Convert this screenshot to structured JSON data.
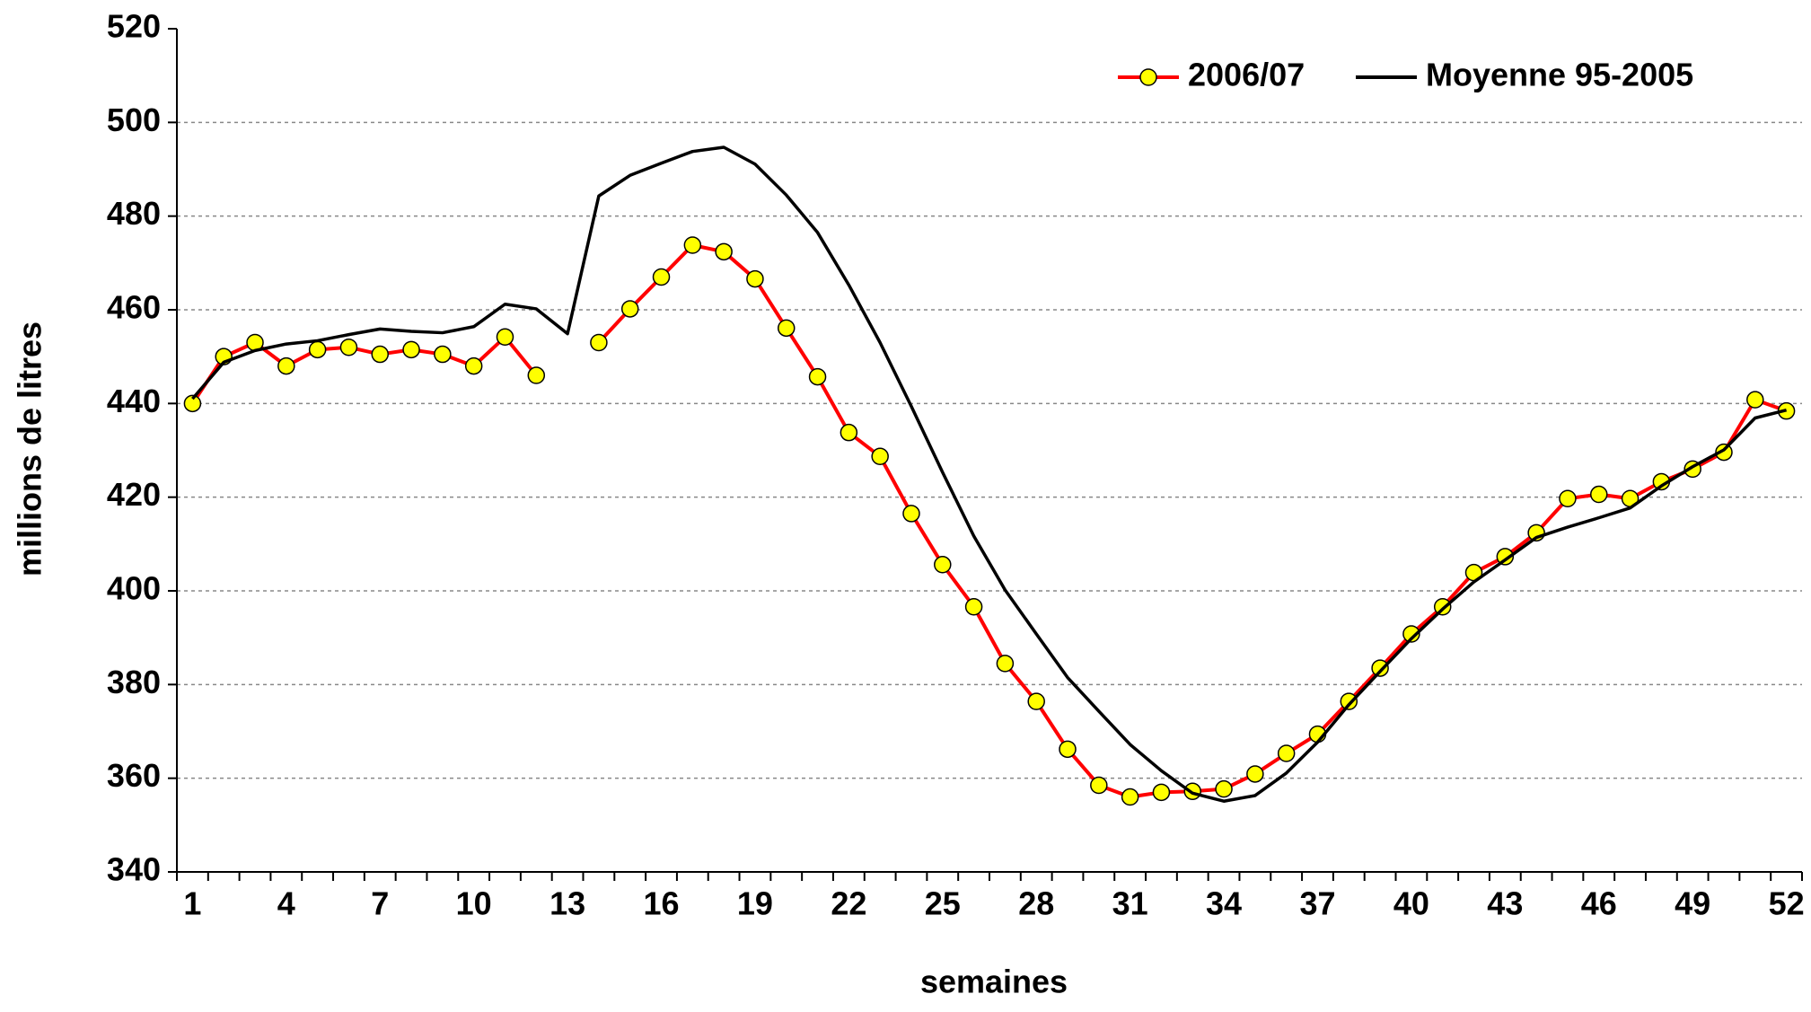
{
  "chart_data": {
    "type": "line",
    "xlabel": "semaines",
    "ylabel": "millions de litres",
    "x": [
      1,
      2,
      3,
      4,
      5,
      6,
      7,
      8,
      9,
      10,
      11,
      12,
      13,
      14,
      15,
      16,
      17,
      18,
      19,
      20,
      21,
      22,
      23,
      24,
      25,
      26,
      27,
      28,
      29,
      30,
      31,
      32,
      33,
      34,
      35,
      36,
      37,
      38,
      39,
      40,
      41,
      42,
      43,
      44,
      45,
      46,
      47,
      48,
      49,
      50,
      51,
      52
    ],
    "xlim": [
      0.5,
      52.5
    ],
    "xticks": [
      1,
      4,
      7,
      10,
      13,
      16,
      19,
      22,
      25,
      28,
      31,
      34,
      37,
      40,
      43,
      46,
      49,
      52
    ],
    "ylim": [
      340,
      520
    ],
    "yticks": [
      340,
      360,
      380,
      400,
      420,
      440,
      460,
      480,
      500,
      520
    ],
    "grid": true,
    "legend": "top-right",
    "series": [
      {
        "name": "2006/07",
        "color": "#ff0000",
        "marker_color": "#ffff00",
        "marker": true,
        "values": [
          440,
          450,
          453,
          448,
          451.5,
          452,
          450.5,
          451.5,
          450.5,
          448,
          454.2,
          446,
          null,
          453,
          460.2,
          467,
          473.8,
          472.4,
          466.6,
          456.1,
          445.7,
          433.8,
          428.7,
          416.5,
          405.6,
          396.6,
          384.5,
          376.4,
          366.2,
          358.5,
          356,
          357,
          357.2,
          357.7,
          360.9,
          365.3,
          369.4,
          376.4,
          383.5,
          390.8,
          396.6,
          403.9,
          407.3,
          412.4,
          419.7,
          420.6,
          419.7,
          423.3,
          426,
          429.6,
          440.8,
          438.4
        ]
      },
      {
        "name": "Moyenne 95-2005",
        "color": "#000000",
        "marker": false,
        "values": [
          441,
          448.8,
          451.3,
          452.7,
          453.4,
          454.7,
          455.9,
          455.4,
          455.1,
          456.4,
          461.2,
          460.2,
          454.9,
          484.3,
          488.7,
          491.3,
          493.8,
          494.7,
          491.1,
          484.5,
          476.5,
          465.3,
          453,
          439.4,
          425.3,
          411.7,
          400.2,
          390.8,
          381.5,
          374.3,
          367.2,
          361.6,
          356.8,
          355.1,
          356.3,
          361.1,
          367.7,
          375.7,
          382.8,
          389.8,
          396.1,
          401.9,
          406.6,
          411.4,
          413.6,
          415.6,
          417.7,
          422.4,
          426.5,
          430.1,
          436.9,
          438.6
        ]
      }
    ]
  }
}
